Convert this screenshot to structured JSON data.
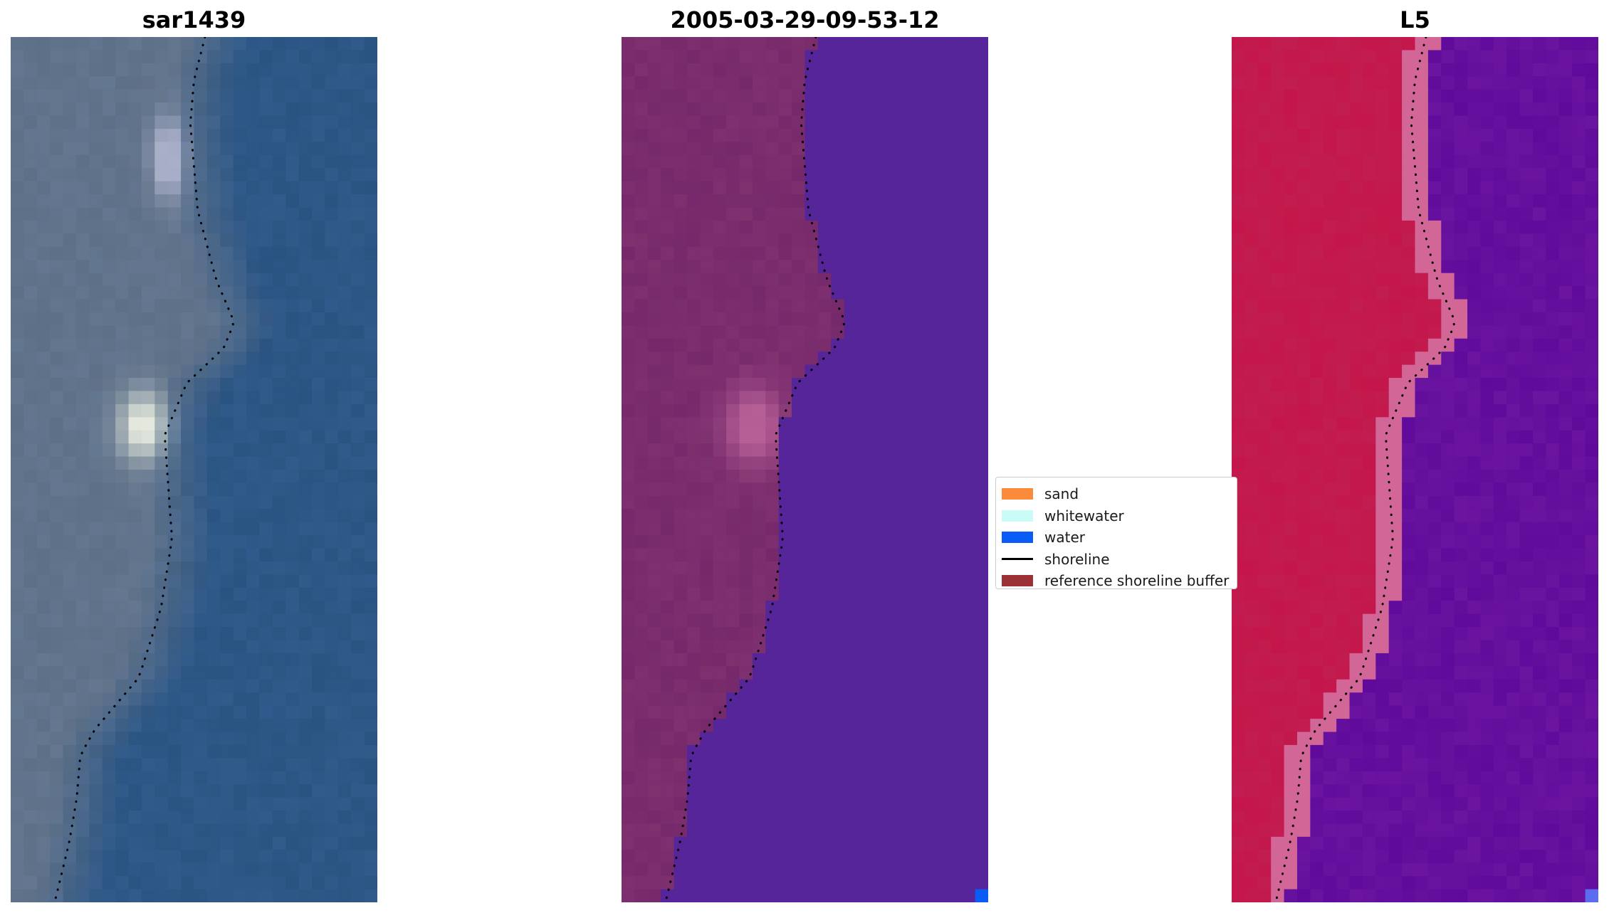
{
  "panels": [
    {
      "title": "sar1439",
      "kind": "rgb"
    },
    {
      "title": "2005-03-29-09-53-12",
      "kind": "classified"
    },
    {
      "title": "L5",
      "kind": "index"
    }
  ],
  "legend": {
    "items": [
      {
        "label": "sand",
        "type": "patch",
        "color": "#fb8a3a"
      },
      {
        "label": "whitewater",
        "type": "patch",
        "color": "#c9fbf7"
      },
      {
        "label": "water",
        "type": "patch",
        "color": "#0a5cf5"
      },
      {
        "label": "shoreline",
        "type": "line",
        "color": "#000000"
      },
      {
        "label": "reference shoreline buffer",
        "type": "patch",
        "color": "#9b3035"
      }
    ]
  },
  "colors": {
    "rgb_sand": "#6a7f99",
    "rgb_water": "#2f5f93",
    "rgb_bright": "#f2f5e6",
    "class_land": "#76296a",
    "class_water": "#552599",
    "class_pink": "#c46aa0",
    "index_land": "#c4164a",
    "index_water": "#6a14a0",
    "index_transition": "#d88ab8",
    "shoreline": "#000000"
  }
}
